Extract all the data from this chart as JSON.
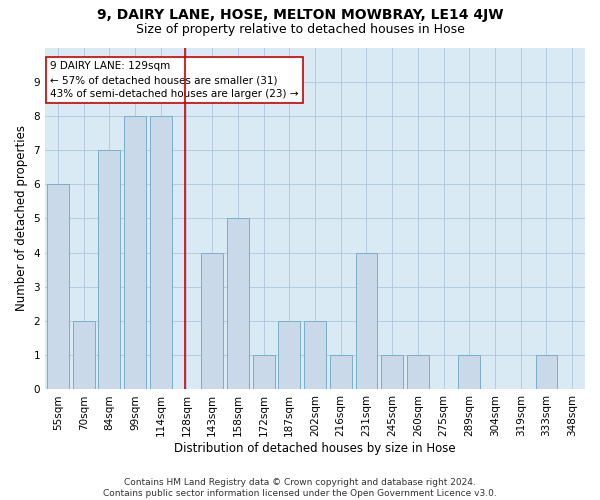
{
  "title_main": "9, DAIRY LANE, HOSE, MELTON MOWBRAY, LE14 4JW",
  "title_sub": "Size of property relative to detached houses in Hose",
  "xlabel": "Distribution of detached houses by size in Hose",
  "ylabel": "Number of detached properties",
  "categories": [
    "55sqm",
    "70sqm",
    "84sqm",
    "99sqm",
    "114sqm",
    "128sqm",
    "143sqm",
    "158sqm",
    "172sqm",
    "187sqm",
    "202sqm",
    "216sqm",
    "231sqm",
    "245sqm",
    "260sqm",
    "275sqm",
    "289sqm",
    "304sqm",
    "319sqm",
    "333sqm",
    "348sqm"
  ],
  "values": [
    6,
    2,
    7,
    8,
    8,
    0,
    4,
    5,
    1,
    2,
    2,
    1,
    4,
    1,
    1,
    0,
    1,
    0,
    0,
    1,
    0
  ],
  "bar_color": "#c9d9ea",
  "bar_edge_color": "#7aaec8",
  "highlight_line_index": 5,
  "highlight_line_color": "#cc0000",
  "annotation_text": "9 DAIRY LANE: 129sqm\n← 57% of detached houses are smaller (31)\n43% of semi-detached houses are larger (23) →",
  "annotation_box_color": "#ffffff",
  "annotation_box_edge_color": "#cc0000",
  "ylim": [
    0,
    10
  ],
  "yticks": [
    0,
    1,
    2,
    3,
    4,
    5,
    6,
    7,
    8,
    9,
    10
  ],
  "grid_color": "#aec6dc",
  "background_color": "#daeaf5",
  "footer_text": "Contains HM Land Registry data © Crown copyright and database right 2024.\nContains public sector information licensed under the Open Government Licence v3.0.",
  "title_fontsize": 10,
  "subtitle_fontsize": 9,
  "xlabel_fontsize": 8.5,
  "ylabel_fontsize": 8.5,
  "tick_fontsize": 7.5,
  "annotation_fontsize": 7.5,
  "footer_fontsize": 6.5
}
